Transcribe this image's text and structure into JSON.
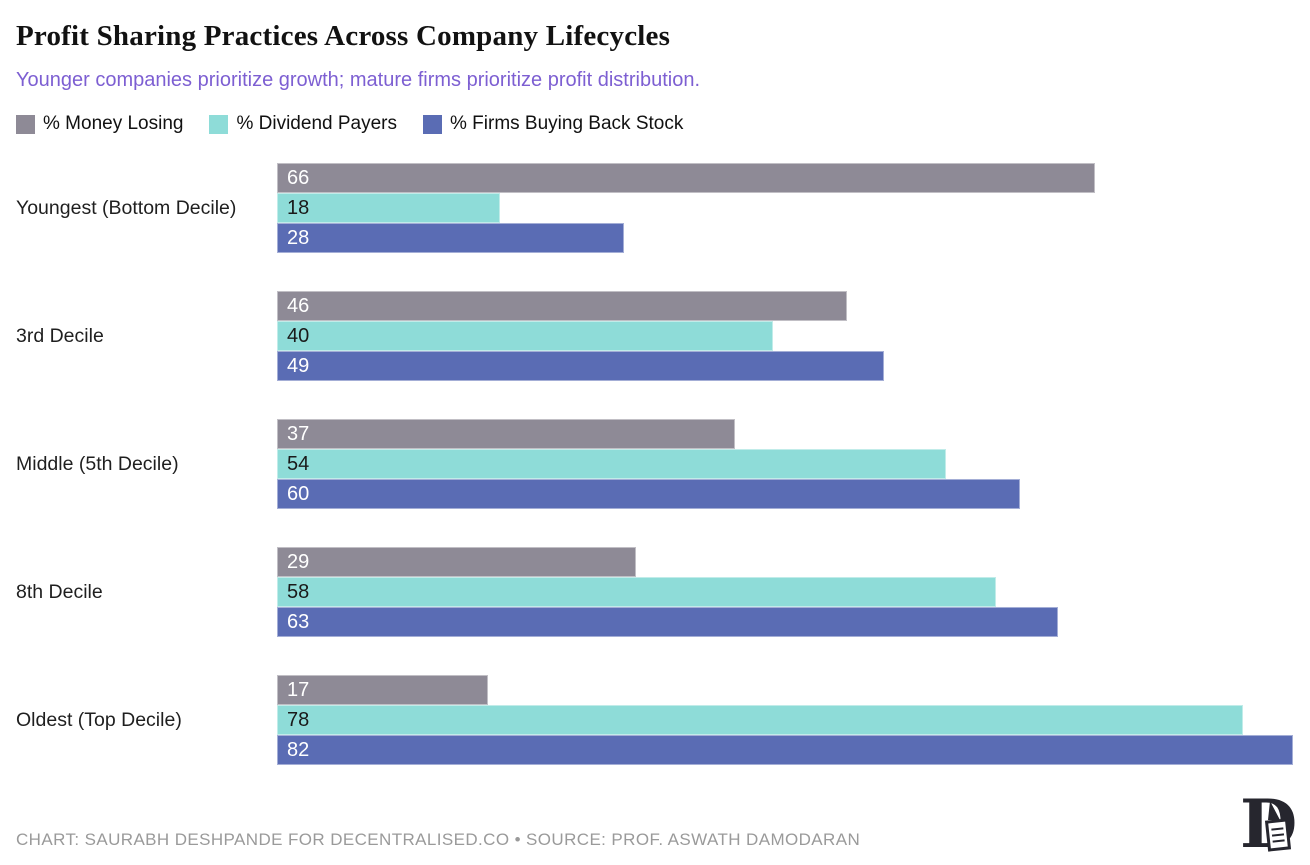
{
  "title": "Profit Sharing Practices Across Company Lifecycles",
  "subtitle": "Younger companies prioritize growth; mature firms prioritize profit distribution.",
  "chart_data": {
    "type": "bar",
    "orientation": "horizontal",
    "title": "Profit Sharing Practices Across Company Lifecycles",
    "subtitle": "Younger companies prioritize growth; mature firms prioritize profit distribution.",
    "categories": [
      "Youngest (Bottom Decile)",
      "3rd Decile",
      "Middle (5th Decile)",
      "8th Decile",
      "Oldest (Top Decile)"
    ],
    "series": [
      {
        "name": "% Money Losing",
        "color": "#8e8a96",
        "label_color": "#ffffff",
        "values": [
          66,
          46,
          37,
          29,
          17
        ]
      },
      {
        "name": "% Dividend Payers",
        "color": "#8edcd8",
        "label_color": "#1a1a1a",
        "values": [
          18,
          40,
          54,
          58,
          78
        ]
      },
      {
        "name": "% Firms Buying Back Stock",
        "color": "#5a6cb4",
        "label_color": "#ffffff",
        "values": [
          28,
          49,
          60,
          63,
          82
        ]
      }
    ],
    "xlim": [
      0,
      82
    ],
    "value_labels": "inside-left",
    "grid": false,
    "legend_position": "top"
  },
  "footer": {
    "credit": "CHART: SAURABH DESHPANDE FOR DECENTRALISED.CO • SOURCE: PROF. ASWATH DAMODARAN"
  },
  "colors": {
    "background": "#ffffff",
    "title": "#121212",
    "subtitle": "#7d5fd2",
    "category_label": "#1f1f1f",
    "footer": "#9a9a9a",
    "logo": "#26262e"
  }
}
